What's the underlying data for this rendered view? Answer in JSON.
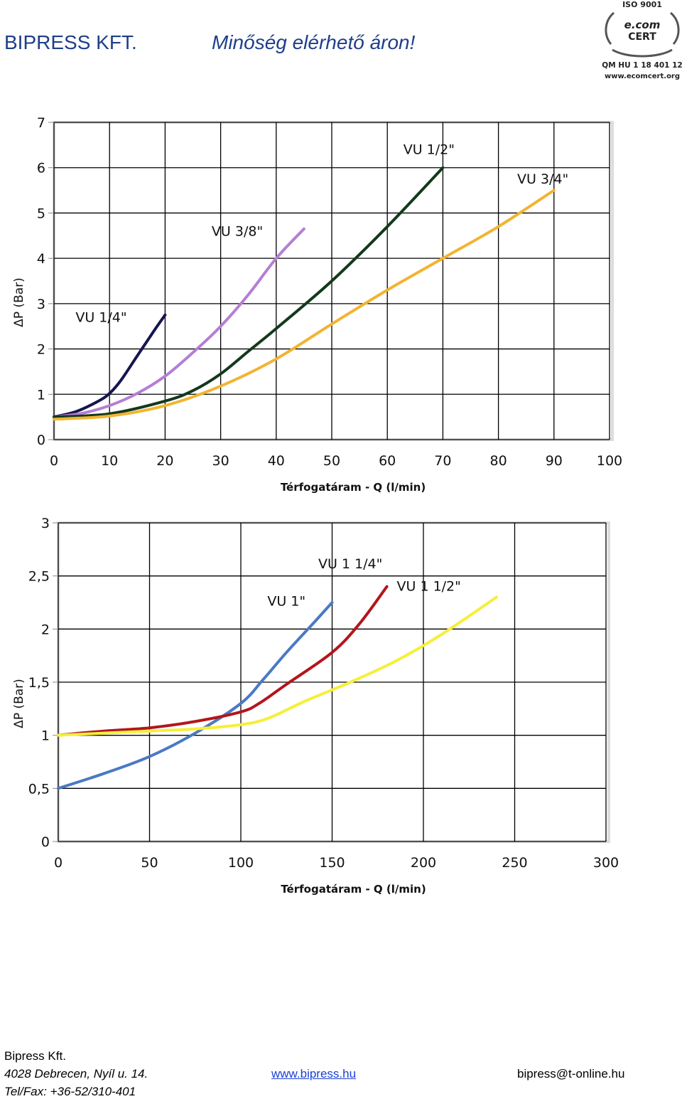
{
  "header": {
    "company": "BIPRESS KFT.",
    "slogan": "Minőség elérhető áron!"
  },
  "certificate": {
    "top_text": "ISO 9001",
    "logo_line1": "e.com",
    "logo_line2": "CERT",
    "code": "QM HU 1 18 401 12",
    "site": "www.ecomcert.org"
  },
  "chart_data": [
    {
      "type": "line",
      "xlabel": "Térfogatáram - Q (l/min)",
      "ylabel": "ΔP (Bar)",
      "xlim": [
        0,
        100
      ],
      "ylim": [
        0,
        7
      ],
      "x_ticks": [
        "0",
        "10",
        "20",
        "30",
        "40",
        "50",
        "60",
        "70",
        "80",
        "90",
        "100"
      ],
      "y_ticks": [
        "0",
        "1",
        "2",
        "3",
        "4",
        "5",
        "6",
        "7"
      ],
      "grid": true,
      "series": [
        {
          "name": "VU 1/4\"",
          "color": "#15164f",
          "label_x": 8.5,
          "label_y": 2.6,
          "x": [
            0,
            4,
            8,
            10,
            12,
            15,
            18,
            20
          ],
          "y": [
            0.5,
            0.62,
            0.85,
            1.02,
            1.3,
            1.85,
            2.4,
            2.75
          ]
        },
        {
          "name": "VU 3/8\"",
          "color": "#b57ed4",
          "label_x": 33,
          "label_y": 4.5,
          "x": [
            0,
            5,
            10,
            15,
            20,
            25,
            30,
            35,
            40,
            45
          ],
          "y": [
            0.5,
            0.58,
            0.75,
            1.02,
            1.4,
            1.92,
            2.5,
            3.2,
            4.0,
            4.65
          ]
        },
        {
          "name": "VU 1/2\"",
          "color": "#13391c",
          "label_x": 67.5,
          "label_y": 6.3,
          "x": [
            0,
            10,
            20,
            25,
            30,
            35,
            40,
            50,
            60,
            70
          ],
          "y": [
            0.5,
            0.57,
            0.85,
            1.08,
            1.45,
            1.95,
            2.45,
            3.5,
            4.7,
            6.0
          ]
        },
        {
          "name": "VU 3/4\"",
          "color": "#f2b431",
          "label_x": 88,
          "label_y": 5.65,
          "x": [
            0,
            10,
            20,
            30,
            40,
            50,
            60,
            70,
            80,
            90
          ],
          "y": [
            0.45,
            0.52,
            0.75,
            1.18,
            1.78,
            2.55,
            3.3,
            4.0,
            4.7,
            5.5
          ]
        }
      ]
    },
    {
      "type": "line",
      "xlabel": "Térfogatáram - Q (l/min)",
      "ylabel": "ΔP (Bar)",
      "xlim": [
        0,
        300
      ],
      "ylim": [
        0,
        3
      ],
      "x_ticks": [
        "0",
        "50",
        "100",
        "150",
        "200",
        "250",
        "300"
      ],
      "y_ticks": [
        "0",
        "0,5",
        "1",
        "1,5",
        "2",
        "2,5",
        "3"
      ],
      "grid": true,
      "series": [
        {
          "name": "VU 1\"",
          "color": "#4a79c4",
          "label_x": 125,
          "label_y": 2.22,
          "x": [
            0,
            25,
            50,
            75,
            100,
            112,
            125,
            140,
            150
          ],
          "y": [
            0.5,
            0.64,
            0.8,
            1.02,
            1.3,
            1.52,
            1.78,
            2.06,
            2.25
          ]
        },
        {
          "name": "VU 1 1/4\"",
          "color": "#b2161b",
          "label_x": 160,
          "label_y": 2.57,
          "x": [
            0,
            25,
            50,
            75,
            100,
            110,
            125,
            150,
            165,
            180
          ],
          "y": [
            1.0,
            1.04,
            1.07,
            1.13,
            1.22,
            1.3,
            1.48,
            1.78,
            2.05,
            2.4
          ]
        },
        {
          "name": "VU 1 1/2\"",
          "color": "#f5ef3a",
          "label_x": 203,
          "label_y": 2.36,
          "x": [
            0,
            25,
            50,
            75,
            100,
            115,
            135,
            160,
            185,
            210,
            240
          ],
          "y": [
            1.0,
            1.02,
            1.04,
            1.06,
            1.1,
            1.16,
            1.32,
            1.5,
            1.7,
            1.95,
            2.3
          ]
        }
      ]
    }
  ],
  "footer": {
    "name": "Bipress Kft.",
    "address": "4028 Debrecen, Nyíl u. 14.",
    "phone": "Tel/Fax: +36-52/310-401",
    "website": "www.bipress.hu",
    "email": "bipress@t-online.hu"
  }
}
